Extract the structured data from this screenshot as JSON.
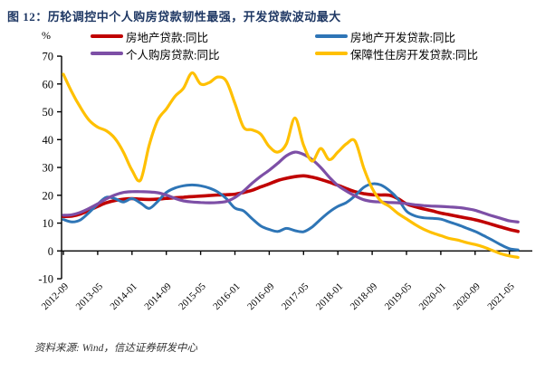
{
  "figure": {
    "title": "图 12：历轮调控中个人购房贷款韧性最强，开发贷款波动最大",
    "y_unit_label": "%",
    "source": "资料来源: Wind，信达证券研发中心"
  },
  "legend": {
    "items": [
      {
        "label": "房地产贷款:同比",
        "color": "#C00000"
      },
      {
        "label": "房地产开发贷款:同比",
        "color": "#2E75B6"
      },
      {
        "label": "个人购房贷款:同比",
        "color": "#7D4FA6"
      },
      {
        "label": "保障性住房开发贷款:同比",
        "color": "#FFC000"
      }
    ]
  },
  "chart_data": {
    "type": "line",
    "title": "历轮调控中个人购房贷款韧性最强，开发贷款波动最大",
    "ylabel": "%",
    "ylim": [
      -10,
      70
    ],
    "y_ticks": [
      70,
      60,
      50,
      40,
      30,
      20,
      10,
      0,
      -10
    ],
    "grid": false,
    "legend_position": "top",
    "x_tick_labels": [
      "2012-09",
      "2013-05",
      "2014-01",
      "2014-09",
      "2015-05",
      "2016-01",
      "2016-09",
      "2017-05",
      "2018-01",
      "2018-09",
      "2019-05",
      "2020-01",
      "2020-09",
      "2021-05"
    ],
    "x": [
      "2012-09",
      "2012-11",
      "2013-01",
      "2013-03",
      "2013-05",
      "2013-07",
      "2013-09",
      "2013-11",
      "2014-01",
      "2014-03",
      "2014-05",
      "2014-07",
      "2014-09",
      "2014-11",
      "2015-01",
      "2015-03",
      "2015-05",
      "2015-07",
      "2015-09",
      "2015-11",
      "2016-01",
      "2016-03",
      "2016-05",
      "2016-07",
      "2016-09",
      "2016-11",
      "2017-01",
      "2017-03",
      "2017-05",
      "2017-07",
      "2017-09",
      "2017-11",
      "2018-01",
      "2018-03",
      "2018-05",
      "2018-07",
      "2018-09",
      "2018-11",
      "2019-01",
      "2019-03",
      "2019-05",
      "2019-07",
      "2019-09",
      "2019-11",
      "2020-01",
      "2020-03",
      "2020-05",
      "2020-07",
      "2020-09",
      "2020-11",
      "2021-01",
      "2021-03",
      "2021-05",
      "2021-07"
    ],
    "series": [
      {
        "key": "real-estate-loans",
        "name": "房地产贷款:同比",
        "color": "#C00000",
        "values": [
          12.4,
          12.5,
          13.3,
          14.6,
          16.0,
          17.3,
          18.1,
          18.6,
          18.8,
          18.6,
          18.5,
          18.6,
          18.9,
          19.1,
          19.3,
          19.5,
          19.7,
          19.9,
          20.1,
          20.2,
          20.4,
          21.0,
          21.8,
          23.0,
          24.1,
          25.3,
          26.1,
          26.7,
          27.0,
          26.5,
          25.7,
          24.7,
          23.6,
          22.4,
          21.3,
          20.6,
          20.2,
          20.1,
          20.0,
          18.8,
          16.9,
          15.9,
          15.1,
          14.4,
          13.6,
          13.0,
          12.4,
          11.8,
          11.2,
          10.4,
          9.5,
          8.6,
          7.7,
          7.0
        ]
      },
      {
        "key": "re-development-loans",
        "name": "房地产开发贷款:同比",
        "color": "#2E75B6",
        "values": [
          11.3,
          10.4,
          11.2,
          13.8,
          16.8,
          19.3,
          18.8,
          17.6,
          18.8,
          17.2,
          15.3,
          17.8,
          21.0,
          22.6,
          23.4,
          23.7,
          23.4,
          22.6,
          21.2,
          18.8,
          15.4,
          14.4,
          11.6,
          9.0,
          7.7,
          7.0,
          8.1,
          7.3,
          6.9,
          8.6,
          11.4,
          14.0,
          16.0,
          17.4,
          19.8,
          22.8,
          24.1,
          23.7,
          21.7,
          18.7,
          14.3,
          12.6,
          11.9,
          11.7,
          11.4,
          10.4,
          9.4,
          8.2,
          7.0,
          5.5,
          3.9,
          2.2,
          0.8,
          0.4
        ]
      },
      {
        "key": "personal-housing-loans",
        "name": "个人购房贷款:同比",
        "color": "#7D4FA6",
        "values": [
          12.8,
          13.0,
          13.9,
          15.3,
          16.9,
          18.7,
          20.1,
          21.0,
          21.3,
          21.3,
          21.2,
          20.9,
          20.1,
          18.9,
          18.0,
          17.6,
          17.4,
          17.3,
          17.4,
          17.8,
          19.2,
          21.5,
          24.3,
          26.8,
          29.0,
          31.5,
          34.2,
          35.5,
          34.7,
          32.8,
          30.0,
          26.5,
          23.5,
          21.5,
          19.8,
          18.4,
          17.8,
          17.6,
          17.4,
          17.3,
          17.0,
          16.6,
          16.3,
          16.1,
          16.0,
          15.8,
          15.6,
          15.2,
          14.6,
          13.6,
          12.6,
          11.7,
          10.8,
          10.4
        ]
      },
      {
        "key": "affordable-housing-dev-loans",
        "name": "保障性住房开发贷款:同比",
        "color": "#FFC000",
        "values": [
          63.5,
          57.0,
          51.5,
          47.0,
          44.5,
          43.2,
          40.5,
          35.5,
          29.0,
          25.5,
          38.0,
          47.0,
          51.0,
          55.5,
          58.5,
          64.0,
          60.0,
          60.5,
          62.5,
          61.0,
          53.0,
          44.5,
          43.5,
          42.0,
          37.5,
          35.5,
          38.5,
          47.8,
          38.0,
          32.3,
          36.8,
          32.8,
          35.5,
          38.5,
          39.5,
          30.0,
          22.5,
          18.0,
          16.0,
          13.5,
          11.5,
          9.5,
          7.8,
          6.5,
          5.5,
          4.5,
          3.9,
          3.0,
          2.3,
          1.4,
          0.2,
          -1.0,
          -1.8,
          -2.3
        ]
      }
    ]
  }
}
